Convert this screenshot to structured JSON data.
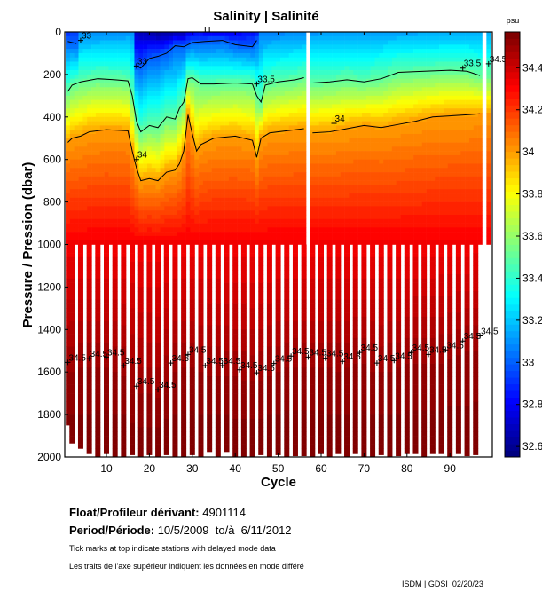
{
  "chart_data": {
    "type": "heatmap",
    "title": "Salinity | Salinité",
    "xlabel": "Cycle",
    "ylabel": "Pressure / Pression (dbar)",
    "xlim": [
      0,
      100
    ],
    "ylim": [
      2000,
      0
    ],
    "xticks": [
      10,
      20,
      30,
      40,
      50,
      60,
      70,
      80,
      90
    ],
    "yticks": [
      0,
      200,
      400,
      600,
      800,
      1000,
      1200,
      1400,
      1600,
      1800,
      2000
    ],
    "colorbar": {
      "label": "psu",
      "colormap": "jet",
      "range": [
        32.55,
        34.57
      ],
      "ticks": [
        32.6,
        32.8,
        33,
        33.2,
        33.4,
        33.6,
        33.8,
        34,
        34.2,
        34.4
      ],
      "tick_labels": [
        "32.6",
        "32.8",
        "33",
        "33.2",
        "33.4",
        "33.6",
        "33.8",
        "34",
        "34.2",
        "34.4"
      ]
    },
    "cycles_last": 99,
    "cycles_missing": [
      57,
      98
    ],
    "shallow_profile_max_pressure": 1000,
    "shallow_only_cycles": [
      99
    ],
    "deep_profiles": {
      "cycles": [
        1,
        2,
        4,
        6,
        8,
        10,
        12,
        14,
        16,
        18,
        20,
        22,
        24,
        26,
        28,
        30,
        32,
        34,
        36,
        38,
        40,
        42,
        44,
        46,
        48,
        50,
        52,
        54,
        56,
        58,
        60,
        62,
        64,
        66,
        68,
        70,
        72,
        74,
        76,
        78,
        80,
        82,
        84,
        86,
        88,
        90,
        92,
        94,
        96
      ],
      "max_pressure": [
        1850,
        1935,
        1960,
        1985,
        2000,
        1985,
        2000,
        2000,
        1990,
        2000,
        1990,
        2000,
        1990,
        2000,
        2000,
        1990,
        2000,
        1975,
        2000,
        1975,
        2000,
        2000,
        2000,
        1990,
        2000,
        1990,
        2000,
        1995,
        1995,
        2000,
        1985,
        2000,
        1985,
        2000,
        1985,
        2000,
        2000,
        1990,
        2000,
        1995,
        1985,
        1985,
        2000,
        1985,
        1985,
        2000,
        1985,
        1995,
        1990
      ]
    },
    "surface_salinity": [
      [
        1,
        32.9
      ],
      [
        3,
        32.95
      ],
      [
        4,
        33.08
      ],
      [
        16,
        33.1
      ],
      [
        17,
        32.7
      ],
      [
        22,
        32.6
      ],
      [
        28,
        32.65
      ],
      [
        29,
        32.75
      ],
      [
        31,
        32.8
      ],
      [
        38,
        32.75
      ],
      [
        45,
        32.85
      ],
      [
        46,
        33.05
      ],
      [
        56,
        33.08
      ],
      [
        58,
        33.1
      ],
      [
        99,
        33.15
      ]
    ],
    "contours": [
      {
        "level": 33,
        "segments": [
          [
            [
              1,
              45
            ],
            [
              3,
              55
            ]
          ],
          [
            [
              17,
              160
            ],
            [
              18,
              170
            ],
            [
              20,
              125
            ],
            [
              22,
              115
            ],
            [
              24,
              100
            ],
            [
              26,
              65
            ],
            [
              28,
              70
            ],
            [
              30,
              50
            ],
            [
              33,
              45
            ],
            [
              37,
              40
            ],
            [
              40,
              60
            ],
            [
              44,
              70
            ],
            [
              45,
              40
            ]
          ]
        ]
      },
      {
        "level": 33.5,
        "segments": [
          [
            [
              1,
              280
            ],
            [
              2,
              250
            ],
            [
              4,
              235
            ],
            [
              8,
              220
            ],
            [
              12,
              225
            ],
            [
              15,
              230
            ],
            [
              16,
              300
            ],
            [
              17,
              420
            ],
            [
              18,
              470
            ],
            [
              20,
              440
            ],
            [
              22,
              450
            ],
            [
              24,
              400
            ],
            [
              26,
              410
            ],
            [
              27,
              360
            ],
            [
              28,
              330
            ],
            [
              29,
              220
            ],
            [
              30,
              215
            ],
            [
              32,
              245
            ],
            [
              35,
              245
            ],
            [
              40,
              240
            ],
            [
              44,
              245
            ],
            [
              45,
              300
            ],
            [
              46,
              330
            ],
            [
              47,
              250
            ],
            [
              50,
              235
            ],
            [
              54,
              225
            ],
            [
              56,
              215
            ]
          ],
          [
            [
              58,
              240
            ],
            [
              62,
              235
            ],
            [
              66,
              225
            ],
            [
              70,
              235
            ],
            [
              74,
              220
            ],
            [
              78,
              190
            ],
            [
              84,
              185
            ],
            [
              90,
              180
            ],
            [
              94,
              185
            ],
            [
              97,
              205
            ]
          ]
        ]
      },
      {
        "level": 34,
        "segments": [
          [
            [
              1,
              520
            ],
            [
              2,
              500
            ],
            [
              4,
              490
            ],
            [
              6,
              470
            ],
            [
              10,
              460
            ],
            [
              15,
              465
            ],
            [
              16,
              560
            ],
            [
              17,
              640
            ],
            [
              18,
              700
            ],
            [
              20,
              690
            ],
            [
              22,
              700
            ],
            [
              24,
              660
            ],
            [
              26,
              650
            ],
            [
              27,
              620
            ],
            [
              28,
              560
            ],
            [
              29,
              390
            ],
            [
              30,
              480
            ],
            [
              31,
              560
            ],
            [
              32,
              530
            ],
            [
              35,
              500
            ],
            [
              40,
              490
            ],
            [
              44,
              510
            ],
            [
              45,
              590
            ],
            [
              46,
              500
            ],
            [
              48,
              475
            ],
            [
              56,
              455
            ]
          ],
          [
            [
              58,
              475
            ],
            [
              62,
              470
            ],
            [
              66,
              455
            ],
            [
              70,
              440
            ],
            [
              74,
              450
            ],
            [
              78,
              435
            ],
            [
              82,
              420
            ],
            [
              86,
              400
            ],
            [
              90,
              395
            ],
            [
              94,
              390
            ],
            [
              97,
              385
            ]
          ]
        ]
      },
      {
        "level": 34.5,
        "segments": [
          [
            [
              1,
              1555
            ],
            [
              6,
              1537
            ],
            [
              10,
              1530
            ],
            [
              14,
              1570
            ],
            [
              17,
              1667
            ],
            [
              22,
              1683
            ],
            [
              25,
              1558
            ],
            [
              29,
              1517
            ],
            [
              33,
              1570
            ],
            [
              37,
              1570
            ],
            [
              41,
              1590
            ],
            [
              45,
              1604
            ],
            [
              49,
              1560
            ],
            [
              53,
              1525
            ],
            [
              57,
              1530
            ],
            [
              61,
              1535
            ],
            [
              65,
              1550
            ],
            [
              69,
              1508
            ],
            [
              73,
              1558
            ],
            [
              77,
              1546
            ],
            [
              81,
              1508
            ],
            [
              85,
              1517
            ],
            [
              89,
              1496
            ],
            [
              93,
              1454
            ],
            [
              97,
              1430
            ]
          ]
        ]
      }
    ],
    "contour_labels": [
      {
        "text": "33",
        "cycle": 4,
        "pressure": 40
      },
      {
        "text": "33",
        "cycle": 17,
        "pressure": 160
      },
      {
        "text": "33.5",
        "cycle": 45,
        "pressure": 245
      },
      {
        "text": "34",
        "cycle": 17,
        "pressure": 600
      },
      {
        "text": "34",
        "cycle": 63,
        "pressure": 430
      },
      {
        "text": "33.5",
        "cycle": 93,
        "pressure": 170
      },
      {
        "text": "34.5",
        "cycle": 99,
        "pressure": 150
      }
    ],
    "delayed_mode_cycles": [
      33,
      34
    ]
  },
  "info": {
    "float_label": "Float/Profileur dérivant:",
    "float_id": "4901114",
    "period_label": "Period/Période:",
    "period_value": "10/5/2009  to/à  6/11/2012",
    "note_en": "Tick marks at top indicate stations with delayed mode data",
    "note_fr": "Les traits de l'axe supérieur indiquent les données en mode différé",
    "credit": "ISDM | GDSI  02/20/23"
  }
}
